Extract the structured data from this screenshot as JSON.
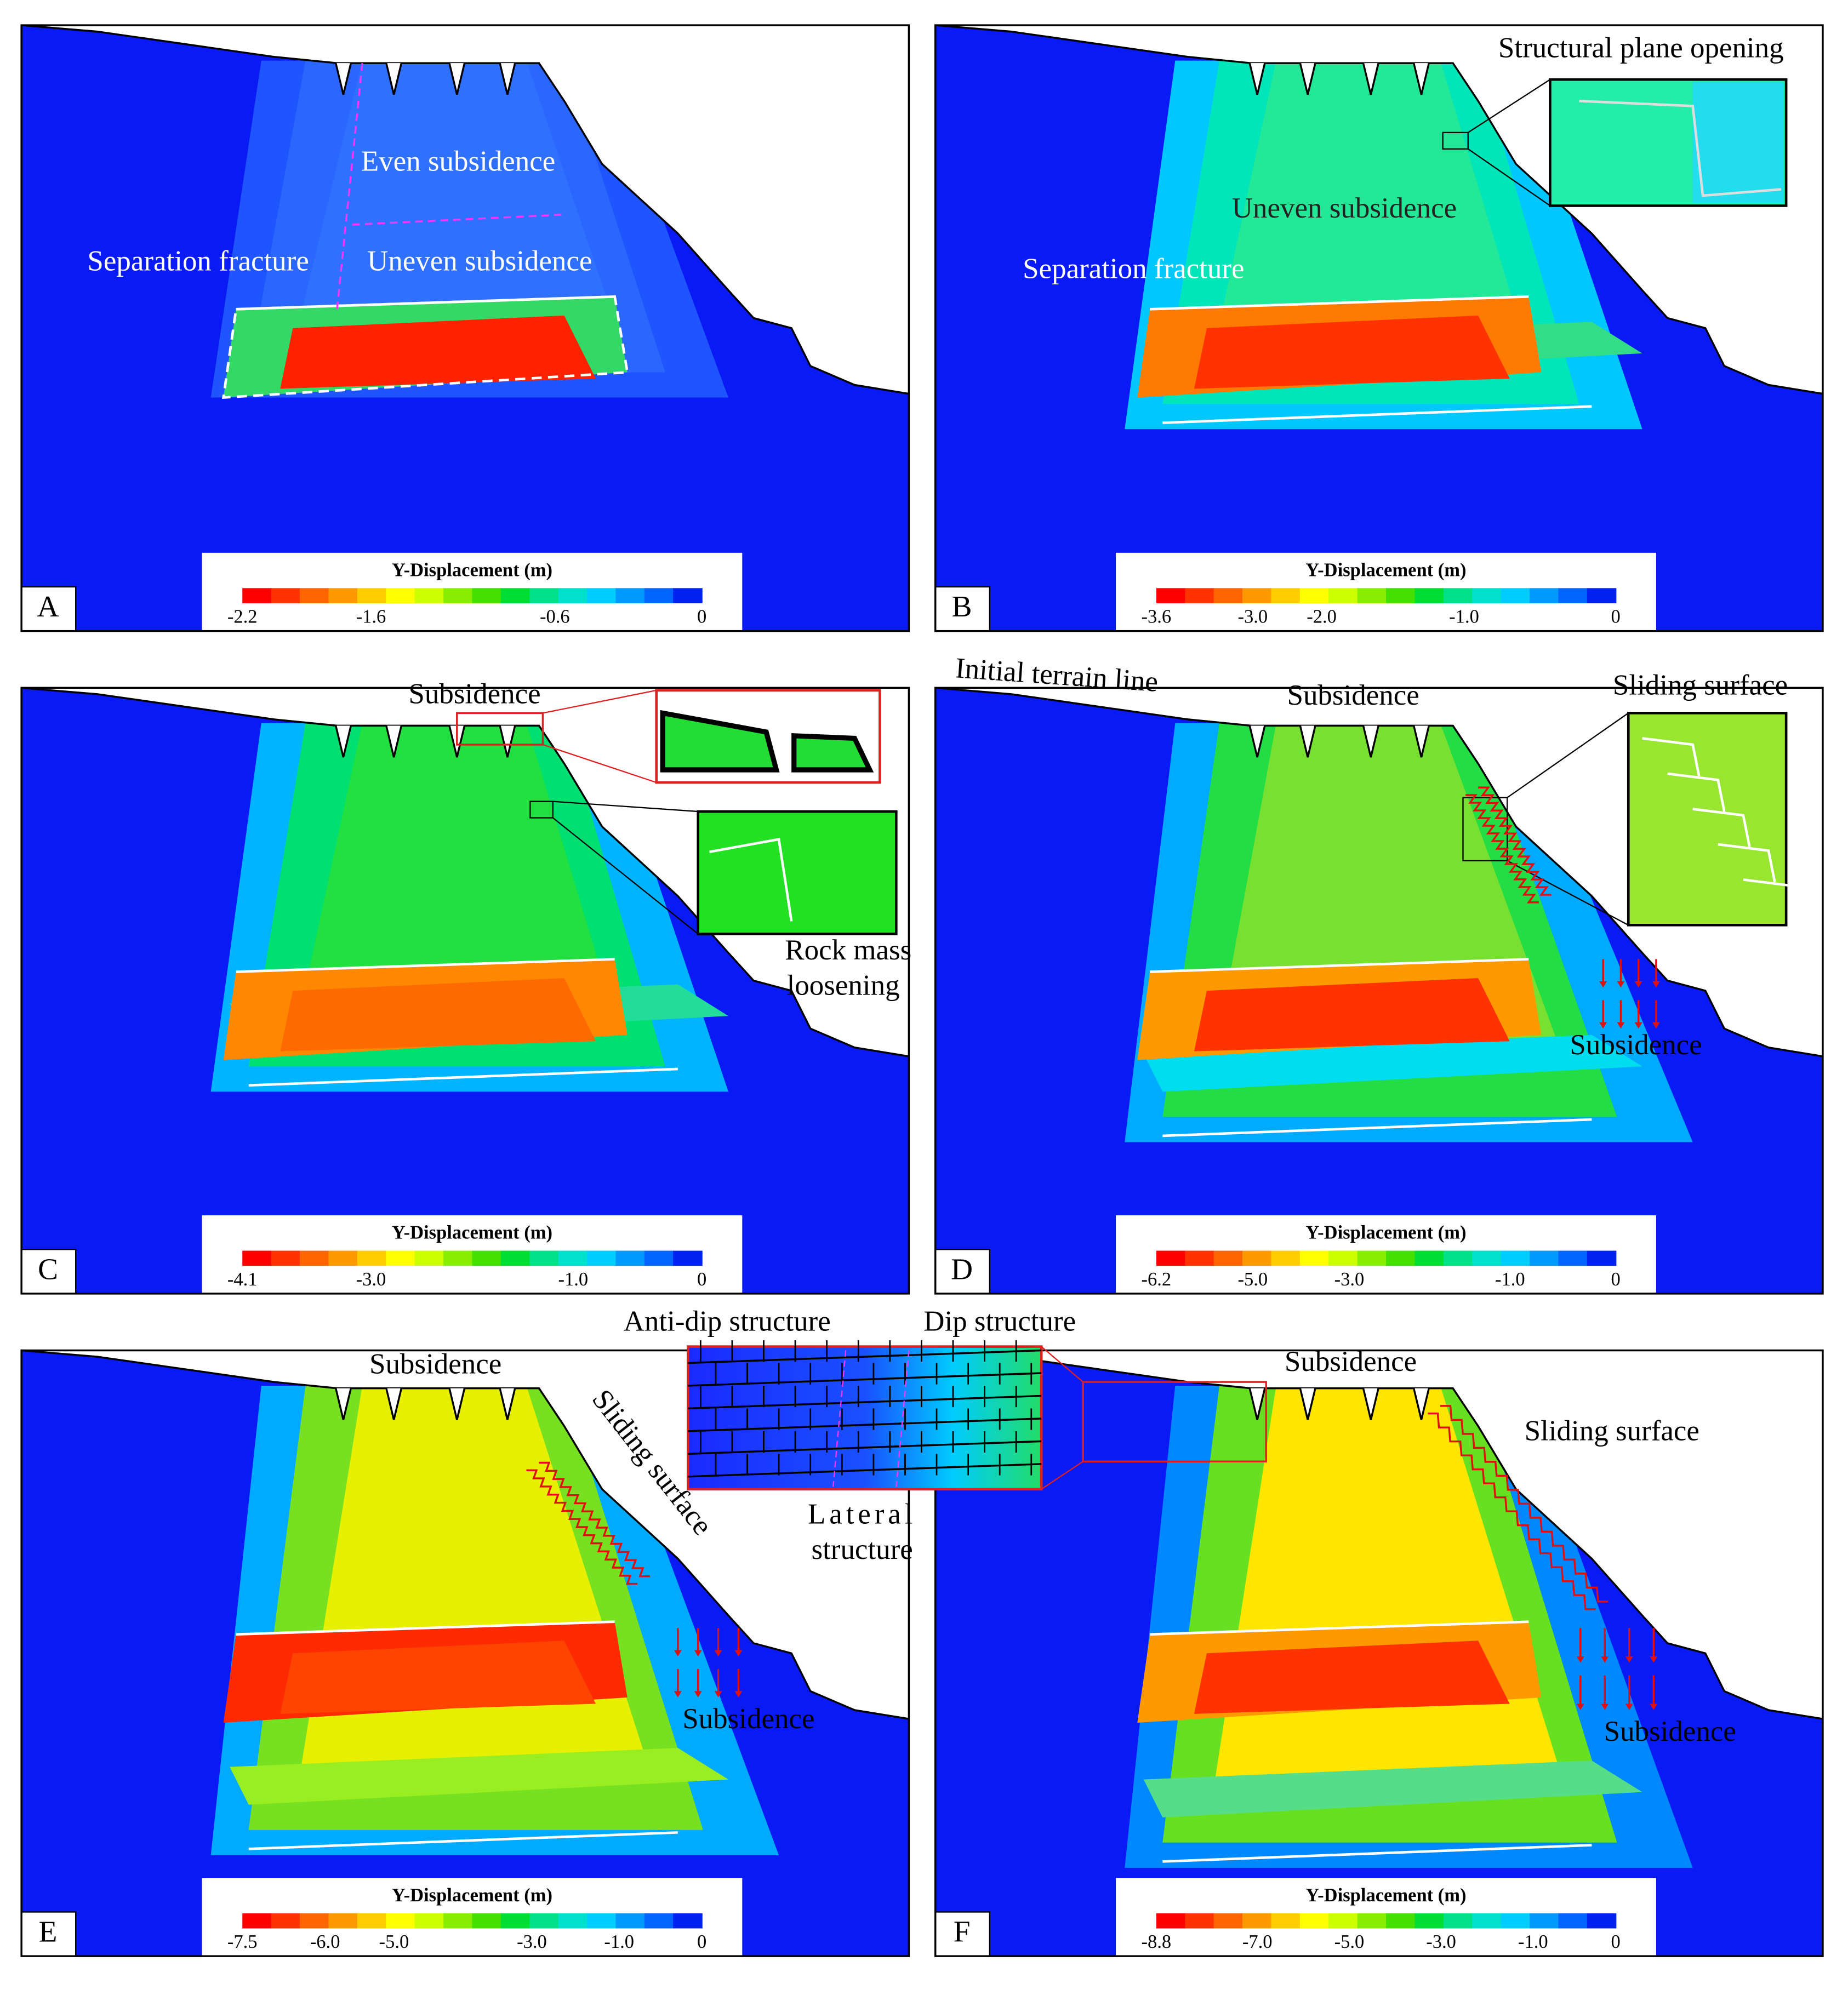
{
  "panels": [
    {
      "label": "A",
      "annotations": [
        "Even subsidence",
        "Separation fracture",
        "Uneven subsidence"
      ],
      "colorbar": {
        "title": "Y-Displacement (m)",
        "ticks": [
          "-2.2",
          "-1.6",
          "-0.6",
          "0"
        ]
      }
    },
    {
      "label": "B",
      "annotations": [
        "Structural plane opening",
        "Uneven subsidence",
        "Separation fracture"
      ],
      "colorbar": {
        "title": "Y-Displacement (m)",
        "ticks": [
          "-3.6",
          "-3.0",
          "-2.0",
          "-1.0",
          "0"
        ]
      }
    },
    {
      "label": "C",
      "annotations": [
        "Subsidence",
        "Rock mass",
        "loosening"
      ],
      "colorbar": {
        "title": "Y-Displacement (m)",
        "ticks": [
          "-4.1",
          "-3.0",
          "-1.0",
          "0"
        ]
      }
    },
    {
      "label": "D",
      "annotations": [
        "Initial terrain line",
        "Subsidence",
        "Sliding surface",
        "Subsidence"
      ],
      "colorbar": {
        "title": "Y-Displacement (m)",
        "ticks": [
          "-6.2",
          "-5.0",
          "-3.0",
          "-1.0",
          "0"
        ]
      }
    },
    {
      "label": "E",
      "annotations": [
        "Subsidence",
        "Sliding surface",
        "Subsidence"
      ],
      "colorbar": {
        "title": "Y-Displacement (m)",
        "ticks": [
          "-7.5",
          "-6.0",
          "-5.0",
          "-3.0",
          "-1.0",
          "0"
        ]
      }
    },
    {
      "label": "F",
      "annotations": [
        "Subsidence",
        "Sliding surface",
        "Subsidence"
      ],
      "colorbar": {
        "title": "Y-Displacement (m)",
        "ticks": [
          "-8.8",
          "-7.0",
          "-5.0",
          "-3.0",
          "-1.0",
          "0"
        ]
      }
    }
  ],
  "inset_labels": [
    "Anti-dip structure",
    "Dip structure",
    "Lateral",
    "structure"
  ]
}
